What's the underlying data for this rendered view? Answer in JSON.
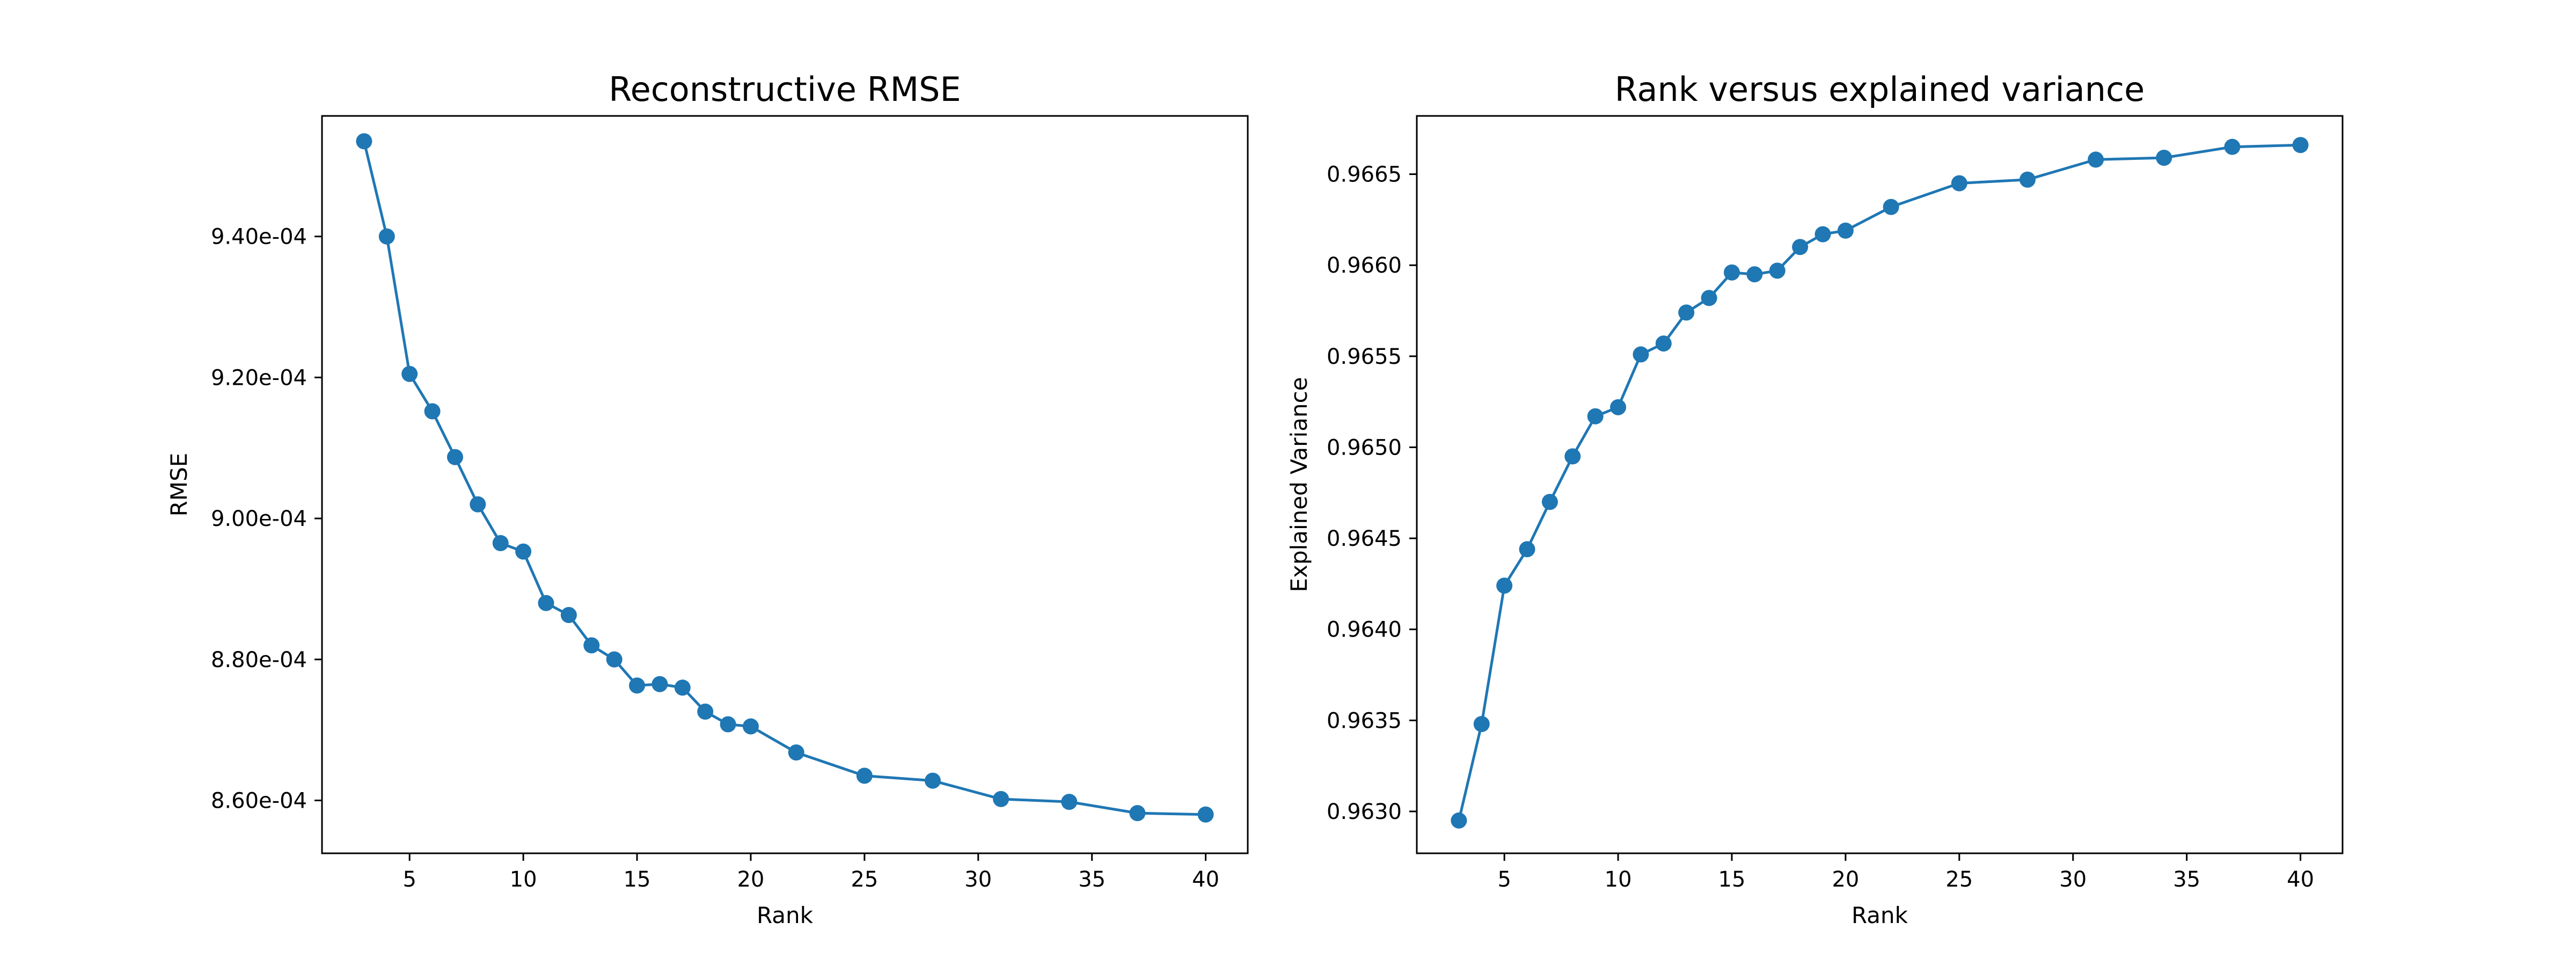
{
  "chart_data": [
    {
      "type": "line",
      "title": "Reconstructive RMSE",
      "xlabel": "Rank",
      "ylabel": "RMSE",
      "xlim": [
        1.15,
        41.85
      ],
      "ylim": [
        0.0008525,
        0.0009571
      ],
      "xticks": [
        5,
        10,
        15,
        20,
        25,
        30,
        35,
        40
      ],
      "xtick_labels": [
        "5",
        "10",
        "15",
        "20",
        "25",
        "30",
        "35",
        "40"
      ],
      "yticks": [
        0.00086,
        0.00088,
        0.0009,
        0.00092,
        0.00094
      ],
      "ytick_labels": [
        "8.60e-04",
        "8.80e-04",
        "9.00e-04",
        "9.20e-04",
        "9.40e-04"
      ],
      "grid": false,
      "marker": "circle",
      "color": "#1f77b4",
      "series": [
        {
          "x": [
            3,
            4,
            5,
            6,
            7,
            8,
            9,
            10,
            11,
            12,
            13,
            14,
            15,
            16,
            17,
            18,
            19,
            20,
            22,
            25,
            28,
            31,
            34,
            37,
            40
          ],
          "values": [
            0.0009535,
            0.00094,
            0.0009205,
            0.0009152,
            0.0009087,
            0.000902,
            0.0008965,
            0.0008953,
            0.000888,
            0.0008863,
            0.000882,
            0.00088,
            0.0008763,
            0.0008765,
            0.000876,
            0.0008726,
            0.0008708,
            0.0008705,
            0.0008668,
            0.0008635,
            0.0008628,
            0.0008602,
            0.0008598,
            0.0008582,
            0.000858
          ]
        }
      ]
    },
    {
      "type": "line",
      "title": "Rank versus explained variance",
      "xlabel": "Rank",
      "ylabel": "Explained Variance",
      "xlim": [
        1.15,
        41.85
      ],
      "ylim": [
        0.96277,
        0.96682
      ],
      "xticks": [
        5,
        10,
        15,
        20,
        25,
        30,
        35,
        40
      ],
      "xtick_labels": [
        "5",
        "10",
        "15",
        "20",
        "25",
        "30",
        "35",
        "40"
      ],
      "yticks": [
        0.963,
        0.9635,
        0.964,
        0.9645,
        0.965,
        0.9655,
        0.966,
        0.9665
      ],
      "ytick_labels": [
        "0.9630",
        "0.9635",
        "0.9640",
        "0.9645",
        "0.9650",
        "0.9655",
        "0.9660",
        "0.9665"
      ],
      "grid": false,
      "marker": "circle",
      "color": "#1f77b4",
      "series": [
        {
          "x": [
            3,
            4,
            5,
            6,
            7,
            8,
            9,
            10,
            11,
            12,
            13,
            14,
            15,
            16,
            17,
            18,
            19,
            20,
            22,
            25,
            28,
            31,
            34,
            37,
            40
          ],
          "values": [
            0.96295,
            0.96348,
            0.96424,
            0.96444,
            0.9647,
            0.96495,
            0.96517,
            0.96522,
            0.96551,
            0.96557,
            0.96574,
            0.96582,
            0.96596,
            0.96595,
            0.96597,
            0.9661,
            0.96617,
            0.96619,
            0.96632,
            0.96645,
            0.96647,
            0.96658,
            0.96659,
            0.96665,
            0.96666
          ]
        }
      ]
    }
  ]
}
